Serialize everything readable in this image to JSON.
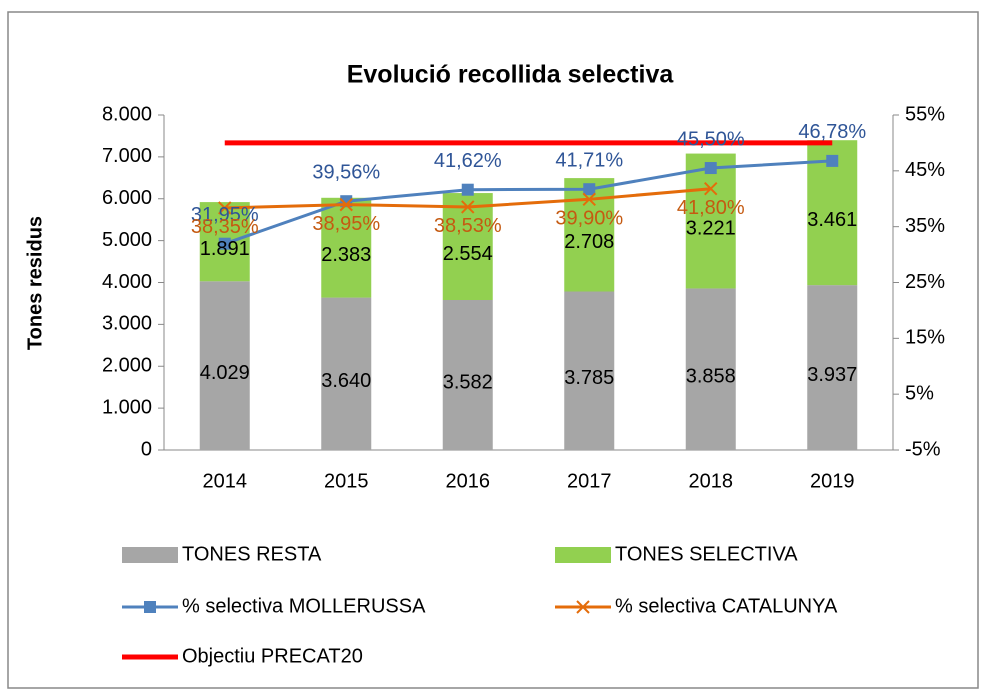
{
  "chart_data": {
    "type": "bar",
    "title": "Evolució recollida selectiva",
    "y_label": "Tones residus",
    "categories": [
      "2014",
      "2015",
      "2016",
      "2017",
      "2018",
      "2019"
    ],
    "ylim": [
      0,
      8000
    ],
    "yticks": [
      0,
      {
        "value": 1000,
        "label": "1.000"
      },
      {
        "value": 2000,
        "label": "2.000"
      },
      {
        "value": 3000,
        "label": "3.000"
      },
      {
        "value": 4000,
        "label": "4.000"
      },
      {
        "value": 5000,
        "label": "5.000"
      },
      {
        "value": 6000,
        "label": "6.000"
      },
      {
        "value": 7000,
        "label": "7.000"
      },
      {
        "value": 8000,
        "label": "8.000"
      }
    ],
    "y2lim": [
      -5,
      55
    ],
    "y2ticks": [
      {
        "value": -5,
        "label": "-5%"
      },
      {
        "value": 5,
        "label": "5%"
      },
      {
        "value": 15,
        "label": "15%"
      },
      {
        "value": 25,
        "label": "25%"
      },
      {
        "value": 35,
        "label": "35%"
      },
      {
        "value": 45,
        "label": "45%"
      },
      {
        "value": 55,
        "label": "55%"
      }
    ],
    "grid": false,
    "series": [
      {
        "name": "TONES RESTA",
        "type": "bar",
        "color": "#a6a6a6",
        "values": [
          4029,
          3640,
          3582,
          3785,
          3858,
          3937
        ],
        "value_labels": [
          "4.029",
          "3.640",
          "3.582",
          "3.785",
          "3.858",
          "3.937"
        ]
      },
      {
        "name": "TONES SELECTIVA",
        "type": "bar",
        "color": "#92d050",
        "values": [
          1891,
          2383,
          2554,
          2708,
          3221,
          3461
        ],
        "value_labels": [
          "1.891",
          "2.383",
          "2.554",
          "2.708",
          "3.221",
          "3.461"
        ]
      },
      {
        "name": "% selectiva MOLLERUSSA",
        "type": "line",
        "axis": "y2",
        "color": "#4f81bd",
        "marker": "square",
        "label_color": "#2f5597",
        "values": [
          31.95,
          39.56,
          41.62,
          41.71,
          45.5,
          46.78
        ],
        "value_labels": [
          "31,95%",
          "39,56%",
          "41,62%",
          "41,71%",
          "45,50%",
          "46,78%"
        ]
      },
      {
        "name": "% selectiva CATALUNYA",
        "type": "line",
        "axis": "y2",
        "color": "#e46c0a",
        "marker": "x",
        "label_color": "#c55a11",
        "values": [
          38.35,
          38.95,
          38.53,
          39.9,
          41.8,
          null
        ],
        "value_labels": [
          "38,35%",
          "38,95%",
          "38,53%",
          "39,90%",
          "41,80%",
          null
        ]
      },
      {
        "name": "Objectiu PRECAT20",
        "type": "line",
        "axis": "y2",
        "color": "#ff0000",
        "marker": "none",
        "values": [
          50,
          50,
          50,
          50,
          50,
          50
        ]
      }
    ]
  }
}
